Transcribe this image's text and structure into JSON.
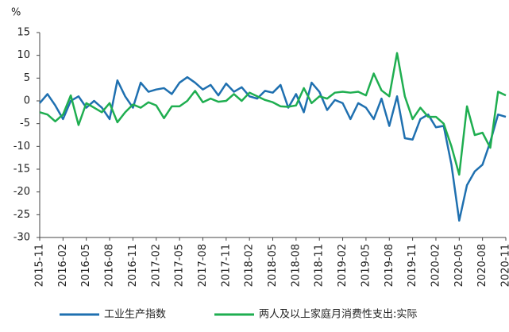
{
  "chart_data": {
    "type": "line",
    "y_label": "%",
    "categories": [
      "2015-11",
      null,
      null,
      "2016-02",
      null,
      null,
      "2016-05",
      null,
      null,
      "2016-08",
      null,
      null,
      "2016-11",
      null,
      null,
      "2017-02",
      null,
      null,
      "2017-05",
      null,
      null,
      "2017-08",
      null,
      null,
      "2017-11",
      null,
      null,
      "2018-02",
      null,
      null,
      "2018-05",
      null,
      null,
      "2018-08",
      null,
      null,
      "2018-11",
      null,
      null,
      "2019-02",
      null,
      null,
      "2019-05",
      null,
      null,
      "2019-08",
      null,
      null,
      "2019-11",
      null,
      null,
      "2020-02",
      null,
      null,
      "2020-05",
      null,
      null,
      "2020-08",
      null,
      null,
      "2020-11"
    ],
    "series": [
      {
        "name": "工业生产指数",
        "color": "#1f70b0",
        "values": [
          -0.5,
          1.5,
          -1,
          -4,
          0,
          1,
          -1.5,
          0,
          -1.5,
          -4,
          4.5,
          1,
          -1.5,
          4,
          2,
          2.5,
          2.8,
          1.5,
          4,
          5.2,
          4,
          2.5,
          3.5,
          1.2,
          3.8,
          2,
          3,
          1,
          0.5,
          2.2,
          1.8,
          3.5,
          -1.5,
          1.5,
          -2.5,
          4,
          2,
          -2,
          0.2,
          -0.5,
          -4,
          -0.5,
          -1.5,
          -4,
          0.5,
          -5.5,
          1,
          -8.2,
          -8.5,
          -4,
          -3,
          -5.8,
          -5.5,
          -14,
          -26.3,
          -18.5,
          -15.5,
          -14,
          -9,
          -3,
          -3.5
        ]
      },
      {
        "name": "两人及以上家庭月消费性支出:实际",
        "color": "#1fae50",
        "values": [
          -2.5,
          -3,
          -4.5,
          -3,
          1.2,
          -5.3,
          -0.5,
          -1.5,
          -2.5,
          -0.5,
          -4.7,
          -2.5,
          -0.8,
          -1.5,
          -0.3,
          -1,
          -3.8,
          -1.2,
          -1.2,
          0,
          2.2,
          -0.3,
          0.5,
          -0.2,
          0,
          1.5,
          0,
          1.8,
          1,
          0.2,
          -0.3,
          -1.2,
          -1.3,
          -1,
          2.8,
          -0.5,
          1,
          0.5,
          1.8,
          2,
          1.8,
          2,
          1.2,
          6,
          2.3,
          1,
          10.5,
          1,
          -4,
          -1.5,
          -3.5,
          -3.5,
          -5,
          -10,
          -16.2,
          -1.2,
          -7.5,
          -7,
          -10.3,
          2,
          1.2
        ]
      }
    ],
    "ylim": [
      -30,
      15
    ],
    "yticks": [
      -30,
      -25,
      -20,
      -15,
      -10,
      -5,
      0,
      5,
      10,
      15
    ],
    "grid": false
  }
}
